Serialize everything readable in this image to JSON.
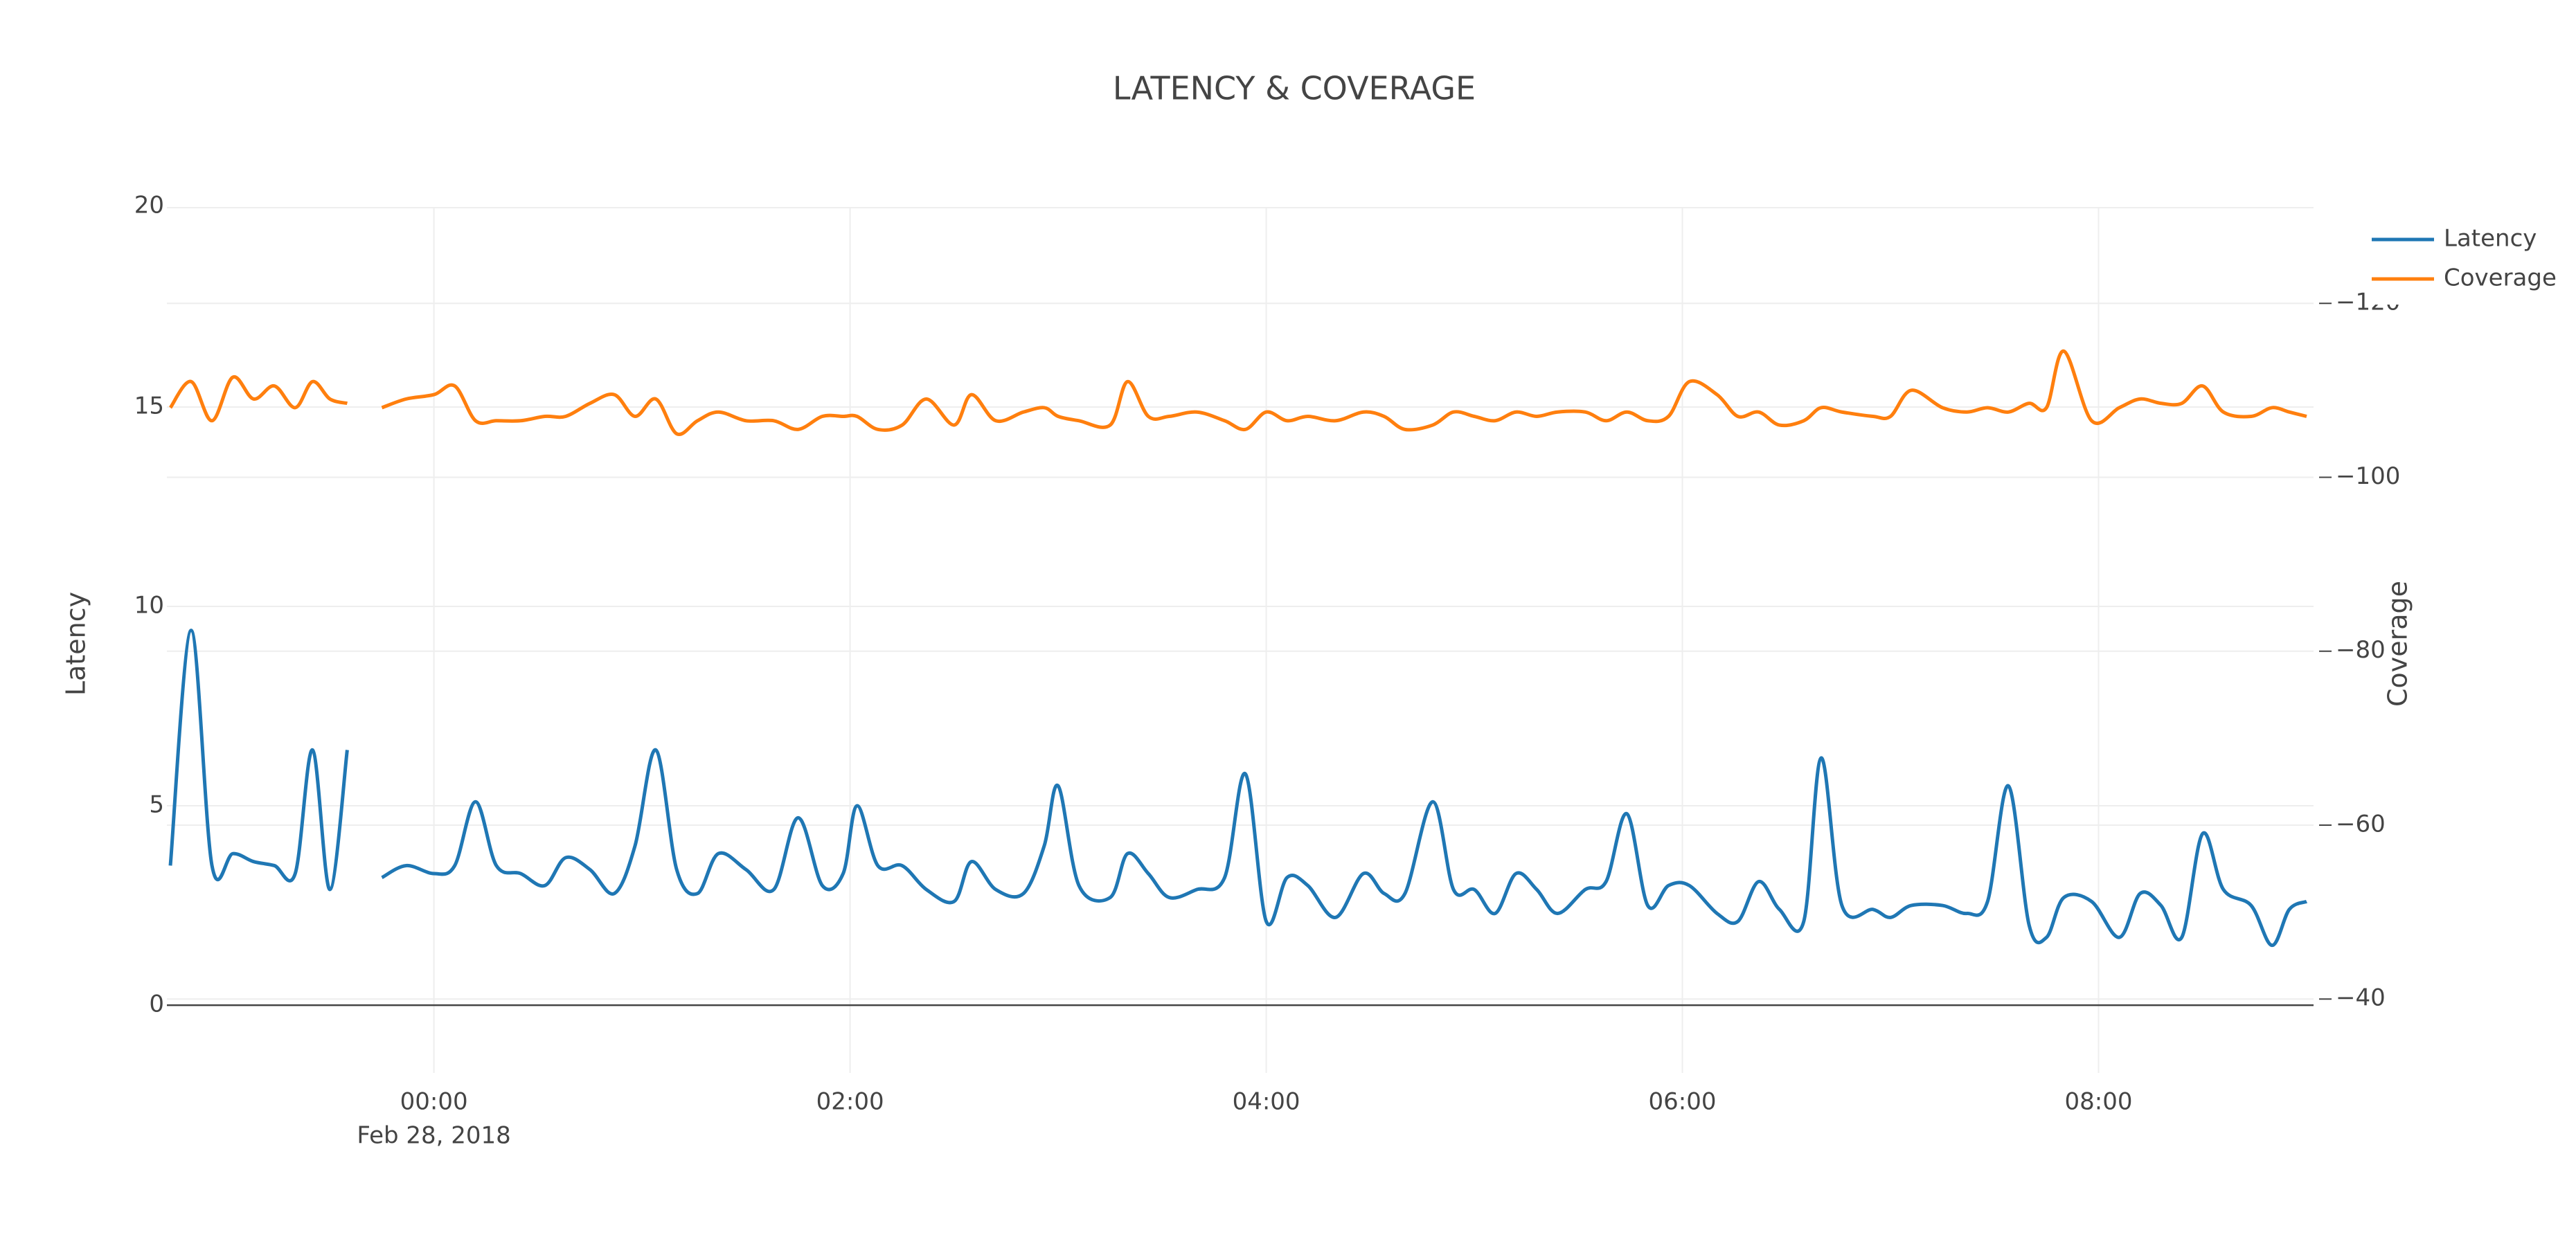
{
  "chart_data": {
    "type": "line",
    "title": "LATENCY & COVERAGE",
    "x": [
      "2018-02-27 22:44",
      "2018-02-27 22:50",
      "2018-02-27 22:56",
      "2018-02-27 23:02",
      "2018-02-27 23:08",
      "2018-02-27 23:14",
      "2018-02-27 23:20",
      "2018-02-27 23:25",
      "2018-02-27 23:30",
      "2018-02-27 23:35",
      "2018-02-27 23:40",
      "2018-02-27 23:45",
      "2018-02-27 23:52",
      "2018-02-28 00:00",
      "2018-02-28 00:06",
      "2018-02-28 00:12",
      "2018-02-28 00:18",
      "2018-02-28 00:25",
      "2018-02-28 00:32",
      "2018-02-28 00:38",
      "2018-02-28 00:45",
      "2018-02-28 00:52",
      "2018-02-28 00:58",
      "2018-02-28 01:04",
      "2018-02-28 01:10",
      "2018-02-28 01:16",
      "2018-02-28 01:22",
      "2018-02-28 01:30",
      "2018-02-28 01:38",
      "2018-02-28 01:45",
      "2018-02-28 01:52",
      "2018-02-28 01:58",
      "2018-02-28 02:02",
      "2018-02-28 02:08",
      "2018-02-28 02:15",
      "2018-02-28 02:22",
      "2018-02-28 02:30",
      "2018-02-28 02:35",
      "2018-02-28 02:42",
      "2018-02-28 02:50",
      "2018-02-28 02:56",
      "2018-02-28 03:00",
      "2018-02-28 03:06",
      "2018-02-28 03:15",
      "2018-02-28 03:20",
      "2018-02-28 03:26",
      "2018-02-28 03:32",
      "2018-02-28 03:40",
      "2018-02-28 03:48",
      "2018-02-28 03:54",
      "2018-02-28 04:00",
      "2018-02-28 04:06",
      "2018-02-28 04:12",
      "2018-02-28 04:20",
      "2018-02-28 04:28",
      "2018-02-28 04:34",
      "2018-02-28 04:40",
      "2018-02-28 04:48",
      "2018-02-28 04:54",
      "2018-02-28 05:00",
      "2018-02-28 05:06",
      "2018-02-28 05:12",
      "2018-02-28 05:18",
      "2018-02-28 05:24",
      "2018-02-28 05:32",
      "2018-02-28 05:38",
      "2018-02-28 05:44",
      "2018-02-28 05:50",
      "2018-02-28 05:56",
      "2018-02-28 06:02",
      "2018-02-28 06:10",
      "2018-02-28 06:16",
      "2018-02-28 06:22",
      "2018-02-28 06:28",
      "2018-02-28 06:35",
      "2018-02-28 06:40",
      "2018-02-28 06:46",
      "2018-02-28 06:55",
      "2018-02-28 07:00",
      "2018-02-28 07:06",
      "2018-02-28 07:15",
      "2018-02-28 07:22",
      "2018-02-28 07:28",
      "2018-02-28 07:34",
      "2018-02-28 07:40",
      "2018-02-28 07:45",
      "2018-02-28 07:50",
      "2018-02-28 07:58",
      "2018-02-28 08:06",
      "2018-02-28 08:12",
      "2018-02-28 08:18",
      "2018-02-28 08:24",
      "2018-02-28 08:30",
      "2018-02-28 08:36",
      "2018-02-28 08:44",
      "2018-02-28 08:50",
      "2018-02-28 08:55",
      "2018-02-28 09:00"
    ],
    "series": [
      {
        "name": "Latency",
        "color": "#1f77b4",
        "axis": "y",
        "values": [
          3.5,
          9.4,
          3.5,
          3.8,
          3.6,
          3.5,
          3.3,
          6.4,
          2.9,
          6.4,
          null,
          3.2,
          3.5,
          3.3,
          3.5,
          5.1,
          3.5,
          3.3,
          3.0,
          3.7,
          3.4,
          2.8,
          4.0,
          6.4,
          3.4,
          2.8,
          3.8,
          3.4,
          2.9,
          4.7,
          3.0,
          3.3,
          5.0,
          3.5,
          3.5,
          2.9,
          2.6,
          3.6,
          2.9,
          2.8,
          4.0,
          5.5,
          3.0,
          2.7,
          3.8,
          3.3,
          2.7,
          2.9,
          3.2,
          5.8,
          2.1,
          3.2,
          3.0,
          2.2,
          3.3,
          2.8,
          2.8,
          5.1,
          2.9,
          2.9,
          2.3,
          3.3,
          2.9,
          2.3,
          2.9,
          3.1,
          4.8,
          2.5,
          3.0,
          3.0,
          2.3,
          2.1,
          3.1,
          2.4,
          2.1,
          6.2,
          2.5,
          2.4,
          2.2,
          2.5,
          2.5,
          2.3,
          2.6,
          5.5,
          2.0,
          1.7,
          2.7,
          2.6,
          1.7,
          2.8,
          2.5,
          1.7,
          4.3,
          2.9,
          2.5,
          1.5,
          2.4,
          2.6
        ]
      },
      {
        "name": "Coverage",
        "color": "#ff7f0e",
        "axis": "y2",
        "values": [
          -108,
          -111,
          -106.5,
          -111.5,
          -109,
          -110.5,
          -108,
          -111,
          -109,
          -108.5,
          null,
          -108,
          -109,
          -109.5,
          -110.5,
          -106.5,
          -106.5,
          -106.5,
          -107,
          -107,
          -108.5,
          -109.5,
          -107,
          -109,
          -105,
          -106.5,
          -107.5,
          -106.5,
          -106.5,
          -105.5,
          -107,
          -107,
          -107,
          -105.5,
          -106,
          -109,
          -106,
          -109.5,
          -106.5,
          -107.5,
          -108,
          -107,
          -106.5,
          -106,
          -111,
          -107,
          -107,
          -107.5,
          -106.5,
          -105.5,
          -107.5,
          -106.5,
          -107,
          -106.5,
          -107.5,
          -107,
          -105.5,
          -106,
          -107.5,
          -107,
          -106.5,
          -107.5,
          -107,
          -107.5,
          -107.5,
          -106.5,
          -107.5,
          -106.5,
          -107,
          -111,
          -109.5,
          -107,
          -107.5,
          -106,
          -106.5,
          -108,
          -107.5,
          -107,
          -107,
          -110,
          -108,
          -107.5,
          -108,
          -107.5,
          -108.5,
          -108,
          -114.5,
          -106.5,
          -108,
          -109,
          -108.5,
          -108.5,
          -110.5,
          -107.5,
          -107,
          -108,
          -107.5,
          -107
        ]
      }
    ],
    "xlim": [
      "2018-02-27 22:43",
      "2018-02-28 09:02"
    ],
    "xticks": [
      {
        "value": "2018-02-28 00:00",
        "label": "00:00"
      },
      {
        "value": "2018-02-28 02:00",
        "label": "02:00"
      },
      {
        "value": "2018-02-28 04:00",
        "label": "04:00"
      },
      {
        "value": "2018-02-28 06:00",
        "label": "06:00"
      },
      {
        "value": "2018-02-28 08:00",
        "label": "08:00"
      }
    ],
    "x_date_label": "Feb 28, 2018",
    "ylabel": "Latency",
    "ylim": [
      -1.7,
      20
    ],
    "yticks": [
      0,
      5,
      10,
      15,
      20
    ],
    "y2label": "Coverage",
    "y2lim": [
      -31.5,
      -131
    ],
    "y2ticks": [
      {
        "value": -40,
        "label": "−40"
      },
      {
        "value": -60,
        "label": "−60"
      },
      {
        "value": -80,
        "label": "−80"
      },
      {
        "value": -100,
        "label": "−100"
      },
      {
        "value": -120,
        "label": "−120"
      }
    ],
    "grid": true,
    "legend": "top-right"
  }
}
